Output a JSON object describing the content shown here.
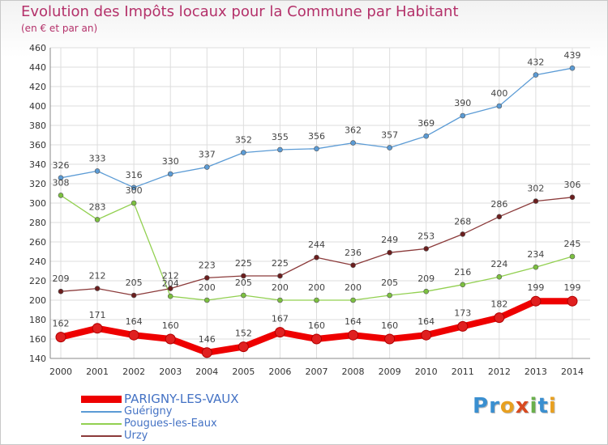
{
  "title": "Evolution des Impôts locaux pour la Commune par Habitant",
  "subtitle": "(en € et par an)",
  "logo": {
    "text": "Proxiti",
    "letters": [
      "P",
      "r",
      "o",
      "x",
      "i",
      "t",
      "i"
    ],
    "colors": [
      "#3a8fd0",
      "#3a8fd0",
      "#e8a020",
      "#d84a20",
      "#6ab04c",
      "#3a8fd0",
      "#e8a020"
    ]
  },
  "chart_data": {
    "type": "line",
    "title": "Evolution des Impôts locaux pour la Commune par Habitant",
    "subtitle": "(en € et par an)",
    "x": [
      "2000",
      "2001",
      "2002",
      "2003",
      "2004",
      "2005",
      "2006",
      "2007",
      "2008",
      "2009",
      "2010",
      "2011",
      "2012",
      "2013",
      "2014"
    ],
    "ylim": [
      140,
      460
    ],
    "yticks": [
      140,
      160,
      180,
      200,
      220,
      240,
      260,
      280,
      300,
      320,
      340,
      360,
      380,
      400,
      420,
      440,
      460
    ],
    "grid": true,
    "legend_position": "bottom-left",
    "series": [
      {
        "name": "PARIGNY-LES-VAUX",
        "color": "#ee0000",
        "marker": "#e02020",
        "values": [
          162,
          171,
          164,
          160,
          146,
          152,
          167,
          160,
          164,
          160,
          164,
          173,
          182,
          199,
          199
        ]
      },
      {
        "name": "Guérigny",
        "color": "#5b9bd5",
        "marker": "#5b9bd5",
        "values": [
          326,
          333,
          316,
          330,
          337,
          352,
          355,
          356,
          362,
          357,
          369,
          390,
          400,
          432,
          439
        ]
      },
      {
        "name": "Pougues-les-Eaux",
        "color": "#92d050",
        "marker": "#7cc040",
        "values": [
          308,
          283,
          300,
          204,
          200,
          205,
          200,
          200,
          200,
          205,
          209,
          216,
          224,
          234,
          245
        ]
      },
      {
        "name": "Urzy",
        "color": "#8b3a3a",
        "marker": "#6b1e1e",
        "values": [
          209,
          212,
          205,
          212,
          223,
          225,
          225,
          244,
          236,
          249,
          253,
          268,
          286,
          302,
          306
        ]
      }
    ],
    "data_labels": [
      [
        "162",
        "171",
        "164",
        "160",
        "146",
        "152",
        "167",
        "160",
        "164",
        "160",
        "164",
        "173",
        "182",
        "199",
        "199"
      ],
      [
        "326",
        "333",
        "316",
        "330",
        "337",
        "352",
        "355",
        "356",
        "362",
        "357",
        "369",
        "390",
        "400",
        "432",
        "439"
      ],
      [
        "308",
        "283",
        "300",
        "204",
        "200",
        "205",
        "200",
        "200",
        "200",
        "205",
        "209",
        "216",
        "224",
        "234",
        "245"
      ],
      [
        "209",
        "212",
        "205",
        "212",
        "223",
        "225",
        "225",
        "244",
        "236",
        "249",
        "253",
        "268",
        "286",
        "302",
        "306"
      ]
    ]
  }
}
